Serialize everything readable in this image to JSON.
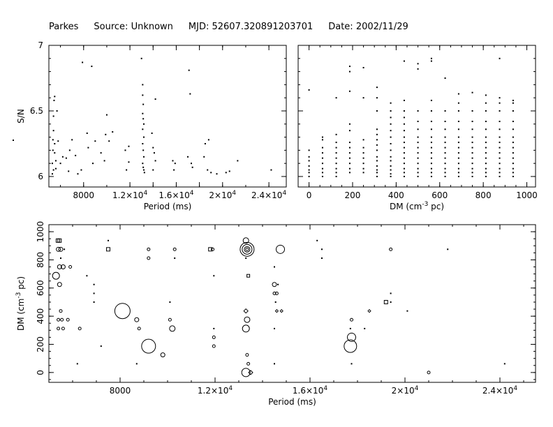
{
  "header": {
    "telescope": "Parkes",
    "source": "Source: Unknown",
    "mjd": "MJD: 52607.320891203701",
    "date": "Date: 2002/11/29"
  },
  "chart_data": [
    {
      "type": "scatter",
      "panel": "snr-vs-period",
      "xlabel": "Period (ms)",
      "ylabel": "S/N",
      "xlim": [
        5000,
        25500
      ],
      "ylim": [
        5.92,
        7.0
      ],
      "xticks": [
        8000,
        12000,
        14000,
        16000,
        18000,
        20000,
        24000
      ],
      "xticklabels": [
        "8000",
        "1.2×10^4",
        "",
        "1.6×10^4",
        "",
        "2×10^4",
        "2.4×10^4"
      ],
      "yticks": [
        6,
        6.5,
        7
      ],
      "yticklabels": [
        "6",
        "6.5",
        "7"
      ],
      "points": [
        [
          5300,
          6.02
        ],
        [
          5300,
          6.1
        ],
        [
          5350,
          6.2
        ],
        [
          5350,
          6.28
        ],
        [
          5400,
          6.35
        ],
        [
          5400,
          6.46
        ],
        [
          5450,
          6.58
        ],
        [
          5500,
          6.61
        ],
        [
          5400,
          6.05
        ],
        [
          5500,
          6.18
        ],
        [
          5500,
          6.25
        ],
        [
          5600,
          6.12
        ],
        [
          5600,
          6.06
        ],
        [
          5700,
          6.5
        ],
        [
          5800,
          6.27
        ],
        [
          6000,
          6.1
        ],
        [
          6200,
          6.15
        ],
        [
          6500,
          6.14
        ],
        [
          6700,
          6.04
        ],
        [
          6800,
          6.2
        ],
        [
          7000,
          6.28
        ],
        [
          7300,
          6.16
        ],
        [
          7500,
          6.02
        ],
        [
          7800,
          6.05
        ],
        [
          7900,
          6.87
        ],
        [
          8300,
          6.33
        ],
        [
          8400,
          6.22
        ],
        [
          8700,
          6.84
        ],
        [
          8800,
          6.1
        ],
        [
          9000,
          6.27
        ],
        [
          9500,
          6.18
        ],
        [
          9900,
          6.32
        ],
        [
          10000,
          6.47
        ],
        [
          9800,
          6.12
        ],
        [
          10200,
          6.27
        ],
        [
          10500,
          6.34
        ],
        [
          11600,
          6.2
        ],
        [
          11700,
          6.05
        ],
        [
          11900,
          6.23
        ],
        [
          11900,
          6.11
        ],
        [
          13000,
          6.9
        ],
        [
          13100,
          6.7
        ],
        [
          13100,
          6.62
        ],
        [
          13150,
          6.55
        ],
        [
          13100,
          6.48
        ],
        [
          13150,
          6.44
        ],
        [
          13200,
          6.4
        ],
        [
          13100,
          6.36
        ],
        [
          13200,
          6.3
        ],
        [
          13100,
          6.25
        ],
        [
          13150,
          6.2
        ],
        [
          13200,
          6.15
        ],
        [
          13100,
          6.1
        ],
        [
          13150,
          6.07
        ],
        [
          13200,
          6.05
        ],
        [
          13250,
          6.03
        ],
        [
          14200,
          6.59
        ],
        [
          14000,
          6.22
        ],
        [
          14100,
          6.18
        ],
        [
          14200,
          6.12
        ],
        [
          14000,
          6.05
        ],
        [
          13900,
          6.33
        ],
        [
          15700,
          6.12
        ],
        [
          15900,
          6.1
        ],
        [
          15800,
          6.05
        ],
        [
          17100,
          6.81
        ],
        [
          17200,
          6.63
        ],
        [
          17000,
          6.15
        ],
        [
          17300,
          6.1
        ],
        [
          17400,
          6.07
        ],
        [
          18500,
          6.25
        ],
        [
          18400,
          6.15
        ],
        [
          18800,
          6.28
        ],
        [
          18700,
          6.05
        ],
        [
          19000,
          6.03
        ],
        [
          19500,
          6.02
        ],
        [
          20300,
          6.03
        ],
        [
          20600,
          6.04
        ],
        [
          21300,
          6.12
        ],
        [
          24200,
          6.05
        ]
      ]
    },
    {
      "type": "scatter",
      "panel": "snr-vs-dm",
      "xlabel": "DM (cm^-3 pc)",
      "ylabel": "",
      "xlim": [
        -50,
        1040
      ],
      "ylim": [
        5.92,
        7.0
      ],
      "xticks": [
        0,
        200,
        400,
        600,
        800,
        1000
      ],
      "xticklabels": [
        "0",
        "200",
        "400",
        "600",
        "800",
        "1000"
      ],
      "columns": [
        {
          "dm": 0,
          "snr": [
            6.0,
            6.03,
            6.05,
            6.08,
            6.12,
            6.15,
            6.2,
            6.66
          ]
        },
        {
          "dm": 62,
          "snr": [
            6.0,
            6.03,
            6.06,
            6.1,
            6.14,
            6.18,
            6.22,
            6.28,
            6.3
          ]
        },
        {
          "dm": 125,
          "snr": [
            6.0,
            6.03,
            6.06,
            6.1,
            6.14,
            6.18,
            6.22,
            6.26,
            6.32,
            6.6
          ]
        },
        {
          "dm": 187,
          "snr": [
            6.03,
            6.06,
            6.1,
            6.14,
            6.18,
            6.22,
            6.26,
            6.35,
            6.4,
            6.65,
            6.8,
            6.84
          ]
        },
        {
          "dm": 250,
          "snr": [
            6.03,
            6.06,
            6.1,
            6.14,
            6.18,
            6.22,
            6.28,
            6.6,
            6.83
          ]
        },
        {
          "dm": 312,
          "snr": [
            6.0,
            6.03,
            6.05,
            6.08,
            6.12,
            6.15,
            6.2,
            6.24,
            6.28,
            6.32,
            6.36,
            6.5,
            6.6,
            6.68
          ]
        },
        {
          "dm": 375,
          "snr": [
            6.0,
            6.02,
            6.05,
            6.08,
            6.12,
            6.15,
            6.2,
            6.25,
            6.3,
            6.35,
            6.4,
            6.45,
            6.5,
            6.56
          ]
        },
        {
          "dm": 437,
          "snr": [
            6.0,
            6.03,
            6.06,
            6.1,
            6.14,
            6.18,
            6.22,
            6.26,
            6.3,
            6.35,
            6.4,
            6.45,
            6.5,
            6.58,
            6.88
          ]
        },
        {
          "dm": 500,
          "snr": [
            6.0,
            6.03,
            6.06,
            6.1,
            6.14,
            6.18,
            6.22,
            6.26,
            6.3,
            6.36,
            6.42,
            6.5,
            6.82,
            6.86
          ]
        },
        {
          "dm": 562,
          "snr": [
            6.0,
            6.03,
            6.06,
            6.1,
            6.14,
            6.18,
            6.22,
            6.26,
            6.3,
            6.36,
            6.42,
            6.5,
            6.58,
            6.88,
            6.9
          ]
        },
        {
          "dm": 625,
          "snr": [
            6.0,
            6.03,
            6.06,
            6.1,
            6.14,
            6.18,
            6.22,
            6.26,
            6.3,
            6.36,
            6.42,
            6.5,
            6.75
          ]
        },
        {
          "dm": 687,
          "snr": [
            6.0,
            6.03,
            6.06,
            6.1,
            6.14,
            6.18,
            6.22,
            6.26,
            6.3,
            6.36,
            6.42,
            6.5,
            6.56,
            6.63
          ]
        },
        {
          "dm": 750,
          "snr": [
            6.0,
            6.03,
            6.06,
            6.1,
            6.14,
            6.18,
            6.22,
            6.26,
            6.3,
            6.36,
            6.42,
            6.5,
            6.64
          ]
        },
        {
          "dm": 812,
          "snr": [
            6.0,
            6.03,
            6.06,
            6.1,
            6.14,
            6.18,
            6.22,
            6.26,
            6.3,
            6.36,
            6.42,
            6.5,
            6.56,
            6.62
          ]
        },
        {
          "dm": 875,
          "snr": [
            6.0,
            6.03,
            6.06,
            6.1,
            6.14,
            6.18,
            6.22,
            6.26,
            6.3,
            6.36,
            6.42,
            6.5,
            6.56,
            6.6,
            6.9
          ]
        },
        {
          "dm": 937,
          "snr": [
            6.0,
            6.03,
            6.06,
            6.1,
            6.14,
            6.18,
            6.22,
            6.26,
            6.3,
            6.36,
            6.42,
            6.5,
            6.56,
            6.58
          ]
        }
      ]
    },
    {
      "type": "scatter",
      "panel": "dm-vs-period",
      "xlabel": "Period (ms)",
      "ylabel": "DM (cm^-3 pc)",
      "xlim": [
        5000,
        25500
      ],
      "ylim": [
        -70,
        1050
      ],
      "xticks": [
        8000,
        12000,
        16000,
        20000,
        24000
      ],
      "xticklabels": [
        "8000",
        "1.2×10^4",
        "1.6×10^4",
        "2×10^4",
        "2.4×10^4"
      ],
      "yticks": [
        0,
        200,
        400,
        600,
        800,
        1000
      ],
      "yticklabels": [
        "0",
        "200",
        "400",
        "600",
        "800",
        "1000"
      ],
      "markers": [
        [
          5380,
          937,
          "sq",
          2.5
        ],
        [
          5450,
          937,
          "sq",
          2.5
        ],
        [
          5400,
          875,
          "o",
          3
        ],
        [
          5500,
          875,
          "o",
          3
        ],
        [
          5650,
          875,
          "dot",
          1
        ],
        [
          5500,
          812,
          "dot",
          1
        ],
        [
          5450,
          750,
          "o",
          3
        ],
        [
          5600,
          750,
          "o",
          3
        ],
        [
          5300,
          687,
          "o",
          5
        ],
        [
          5450,
          625,
          "o",
          3
        ],
        [
          5500,
          437,
          "o",
          2
        ],
        [
          5400,
          375,
          "o",
          2
        ],
        [
          5550,
          375,
          "o",
          2
        ],
        [
          5400,
          312,
          "o",
          2
        ],
        [
          5600,
          312,
          "o",
          2
        ],
        [
          5800,
          375,
          "o",
          2
        ],
        [
          6200,
          62,
          "dot",
          1
        ],
        [
          6300,
          312,
          "o",
          2
        ],
        [
          5900,
          750,
          "o",
          2
        ],
        [
          6900,
          625,
          "dot",
          1
        ],
        [
          6900,
          562,
          "dot",
          1
        ],
        [
          6900,
          500,
          "dot",
          1
        ],
        [
          6600,
          687,
          "dot",
          1
        ],
        [
          7500,
          937,
          "dot",
          1
        ],
        [
          7500,
          875,
          "sq",
          2.5
        ],
        [
          7200,
          187,
          "dot",
          1
        ],
        [
          8100,
          437,
          "o",
          11
        ],
        [
          8700,
          375,
          "o",
          3
        ],
        [
          8800,
          312,
          "o",
          2
        ],
        [
          8700,
          62,
          "dot",
          1
        ],
        [
          9200,
          875,
          "o",
          2
        ],
        [
          9200,
          812,
          "o",
          2
        ],
        [
          9200,
          187,
          "o",
          10
        ],
        [
          9800,
          125,
          "o",
          3
        ],
        [
          10100,
          500,
          "dot",
          1
        ],
        [
          10100,
          375,
          "o",
          2
        ],
        [
          10200,
          312,
          "o",
          4
        ],
        [
          10300,
          875,
          "o",
          2
        ],
        [
          10300,
          812,
          "dot",
          1
        ],
        [
          11800,
          875,
          "sq",
          2.5
        ],
        [
          11900,
          875,
          "o",
          2
        ],
        [
          11950,
          687,
          "dot",
          1
        ],
        [
          11950,
          312,
          "dot",
          1
        ],
        [
          11950,
          250,
          "o",
          2
        ],
        [
          11950,
          187,
          "o",
          2
        ],
        [
          13300,
          937,
          "o",
          4
        ],
        [
          13350,
          875,
          "o",
          10
        ],
        [
          13350,
          875,
          "o",
          7
        ],
        [
          13350,
          875,
          "o",
          4
        ],
        [
          13350,
          875,
          "o",
          2
        ],
        [
          13300,
          812,
          "dot",
          1
        ],
        [
          13400,
          687,
          "sq",
          2
        ],
        [
          13300,
          437,
          "dia",
          3
        ],
        [
          13350,
          375,
          "o",
          4
        ],
        [
          13300,
          312,
          "o",
          5
        ],
        [
          13350,
          125,
          "o",
          2
        ],
        [
          13400,
          62,
          "o",
          2
        ],
        [
          13300,
          0,
          "o",
          6
        ],
        [
          13500,
          0,
          "dia",
          3
        ],
        [
          14500,
          750,
          "dot",
          1
        ],
        [
          14500,
          625,
          "o",
          3
        ],
        [
          14650,
          625,
          "dot",
          1
        ],
        [
          14500,
          562,
          "o",
          2
        ],
        [
          14600,
          562,
          "o",
          2
        ],
        [
          14550,
          500,
          "dot",
          1
        ],
        [
          14600,
          437,
          "dia",
          2
        ],
        [
          14800,
          437,
          "dia",
          2
        ],
        [
          14500,
          312,
          "dot",
          1
        ],
        [
          14500,
          62,
          "dot",
          1
        ],
        [
          14750,
          875,
          "o",
          6
        ],
        [
          16300,
          937,
          "dot",
          1
        ],
        [
          16500,
          875,
          "dot",
          1
        ],
        [
          16500,
          812,
          "dot",
          1
        ],
        [
          17750,
          375,
          "o",
          2
        ],
        [
          17700,
          312,
          "dot",
          1
        ],
        [
          17750,
          250,
          "o",
          6
        ],
        [
          17700,
          187,
          "o",
          9
        ],
        [
          17750,
          62,
          "dot",
          1
        ],
        [
          18300,
          312,
          "dot",
          1
        ],
        [
          18500,
          437,
          "dia",
          2
        ],
        [
          19200,
          500,
          "sq",
          2.5
        ],
        [
          19400,
          562,
          "dot",
          1
        ],
        [
          19400,
          500,
          "dot",
          1
        ],
        [
          19400,
          875,
          "o",
          2
        ],
        [
          20100,
          437,
          "dot",
          1
        ],
        [
          21000,
          0,
          "o",
          2
        ],
        [
          21800,
          875,
          "dot",
          1
        ],
        [
          24200,
          62,
          "dot",
          1
        ]
      ]
    }
  ]
}
